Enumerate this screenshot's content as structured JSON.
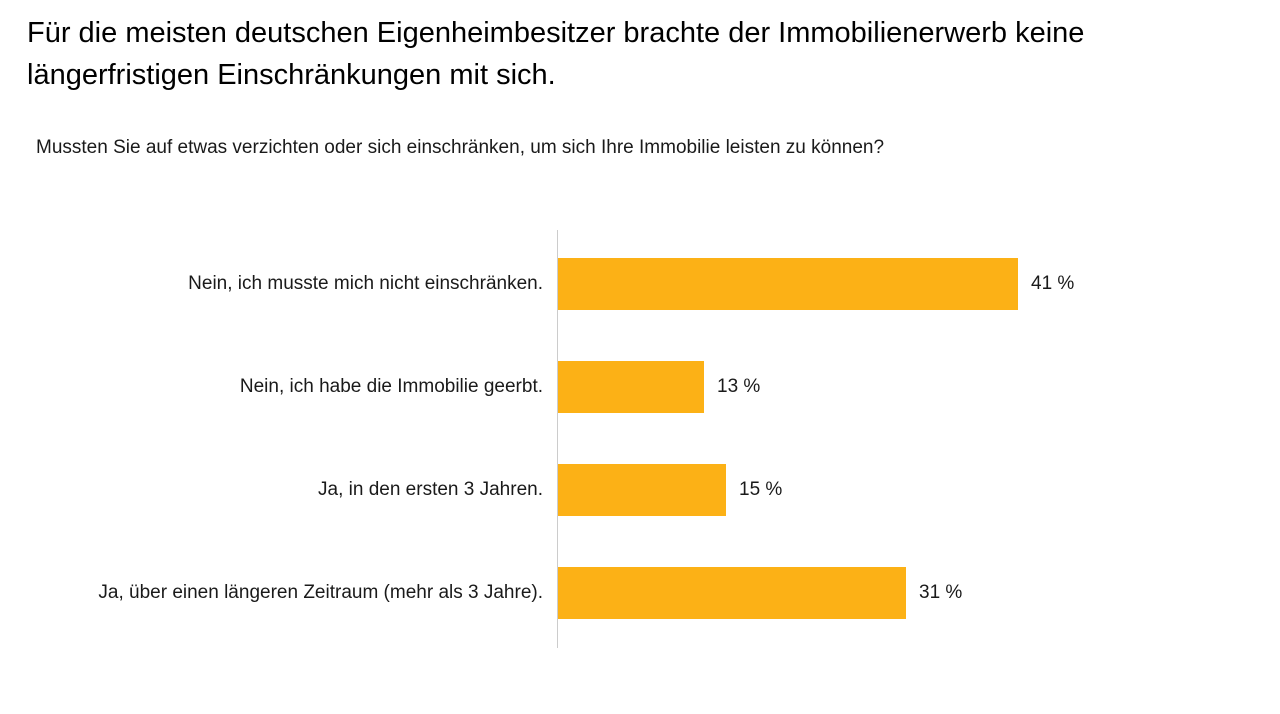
{
  "page": {
    "title": "Für die meisten deutschen Eigenheimbesitzer brachte der Immobilienerwerb keine längerfristigen Einschränkungen mit sich.",
    "question": "Mussten Sie auf etwas verzichten oder sich einschränken, um sich Ihre Immobilie leisten zu können?"
  },
  "chart_data": {
    "type": "bar",
    "orientation": "horizontal",
    "title": "Für die meisten deutschen Eigenheimbesitzer brachte der Immobilienerwerb keine längerfristigen Einschränkungen mit sich.",
    "subtitle": "Mussten Sie auf etwas verzichten oder sich einschränken, um sich Ihre Immobilie leisten zu können?",
    "categories": [
      "Nein, ich musste mich nicht einschränken.",
      "Nein, ich habe die Immobilie geerbt.",
      "Ja, in den ersten 3 Jahren.",
      "Ja, über einen längeren Zeitraum (mehr als 3 Jahre)."
    ],
    "values": [
      41,
      13,
      15,
      31
    ],
    "value_labels": [
      "41 %",
      "13 %",
      "15 %",
      "31 %"
    ],
    "unit": "%",
    "xlim": [
      0,
      64
    ],
    "grid": false,
    "legend": false,
    "bar_color": "#FCB116",
    "axis_color": "#CCCCCC",
    "text_color": "#1A1A1A"
  }
}
